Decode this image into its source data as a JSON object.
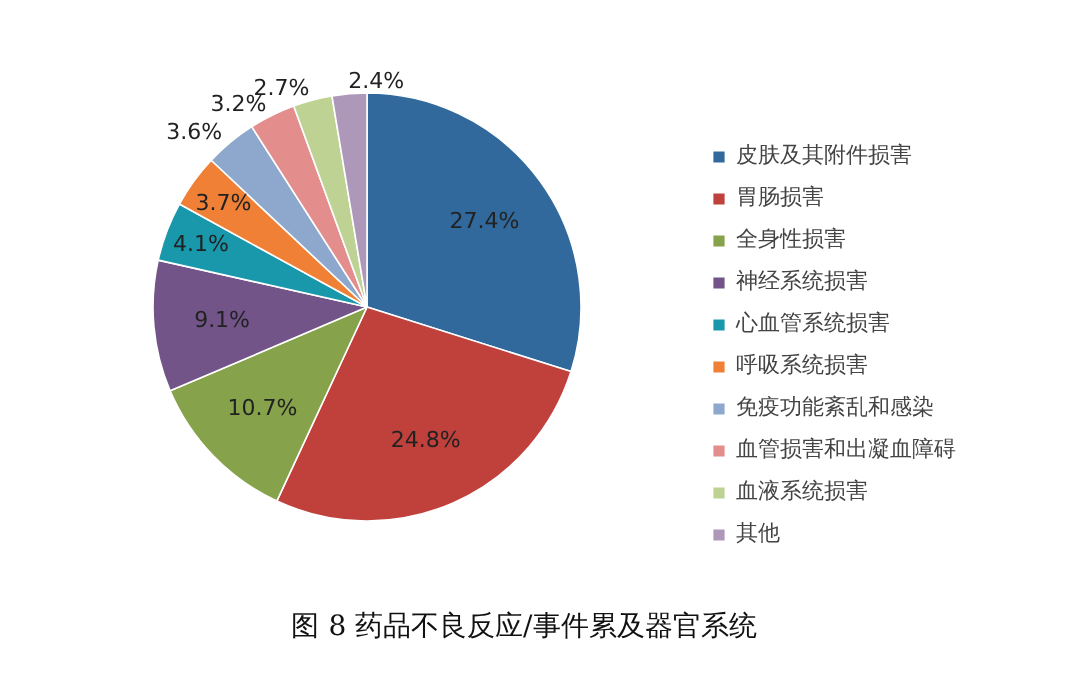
{
  "chart_data": {
    "type": "pie",
    "title": "图 8 药品不良反应/事件累及器官系统",
    "categories": [
      "皮肤及其附件损害",
      "胃肠损害",
      "全身性损害",
      "神经系统损害",
      "心血管系统损害",
      "呼吸系统损害",
      "免疫功能紊乱和感染",
      "血管损害和出凝血障碍",
      "血液系统损害",
      "其他"
    ],
    "values": [
      27.4,
      24.8,
      10.7,
      9.1,
      4.1,
      3.7,
      3.6,
      3.2,
      2.7,
      2.4
    ],
    "value_labels": [
      "27.4%",
      "24.8%",
      "10.7%",
      "9.1%",
      "4.1%",
      "3.7%",
      "3.6%",
      "3.2%",
      "2.7%",
      "2.4%"
    ],
    "colors": [
      "#31699c",
      "#c0403c",
      "#86a34b",
      "#725489",
      "#1a98ab",
      "#ef8035",
      "#8ea8cd",
      "#e38e8c",
      "#bed393",
      "#ad98ba"
    ],
    "legend": "right"
  }
}
